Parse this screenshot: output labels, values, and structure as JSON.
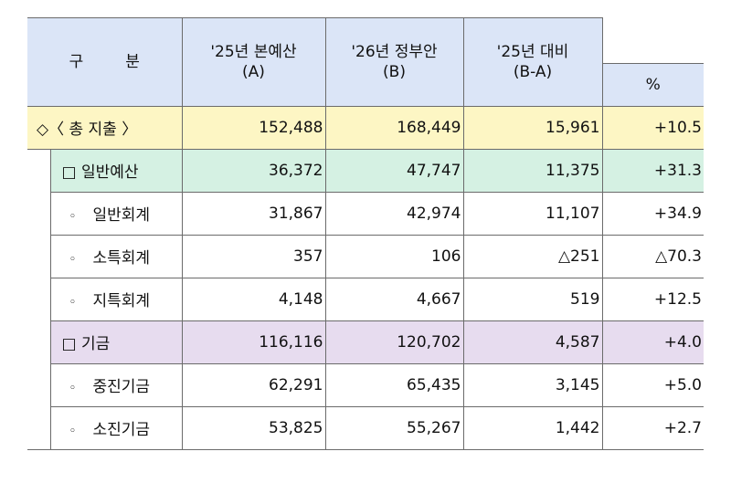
{
  "header": {
    "category": [
      "구",
      "분"
    ],
    "col_a": [
      "'25년 본예산",
      "(A)"
    ],
    "col_b": [
      "'26년 정부안",
      "(B)"
    ],
    "col_diff": [
      "'25년 대비",
      "(B-A)"
    ],
    "col_pct": "%"
  },
  "rows": [
    {
      "label": "◇〈 총 지출 〉",
      "a": "152,488",
      "b": "168,449",
      "diff": "15,961",
      "pct": "+10.5"
    },
    {
      "label": "□ 일반예산",
      "a": "36,372",
      "b": "47,747",
      "diff": "11,375",
      "pct": "+31.3"
    },
    {
      "bullet": "◦",
      "label": "일반회계",
      "a": "31,867",
      "b": "42,974",
      "diff": "11,107",
      "pct": "+34.9"
    },
    {
      "bullet": "◦",
      "label": "소특회계",
      "a": "357",
      "b": "106",
      "diff": "△251",
      "pct": "△70.3"
    },
    {
      "bullet": "◦",
      "label": "지특회계",
      "a": "4,148",
      "b": "4,667",
      "diff": "519",
      "pct": "+12.5"
    },
    {
      "label": "□ 기금",
      "a": "116,116",
      "b": "120,702",
      "diff": "4,587",
      "pct": "+4.0"
    },
    {
      "bullet": "◦",
      "label": "중진기금",
      "a": "62,291",
      "b": "65,435",
      "diff": "3,145",
      "pct": "+5.0"
    },
    {
      "bullet": "◦",
      "label": "소진기금",
      "a": "53,825",
      "b": "55,267",
      "diff": "1,442",
      "pct": "+2.7"
    }
  ],
  "colors": {
    "header_bg": "#dbe5f7",
    "total_bg": "#fdf6c4",
    "general_budget_bg": "#d5f1e3",
    "fund_bg": "#e7dcef"
  }
}
